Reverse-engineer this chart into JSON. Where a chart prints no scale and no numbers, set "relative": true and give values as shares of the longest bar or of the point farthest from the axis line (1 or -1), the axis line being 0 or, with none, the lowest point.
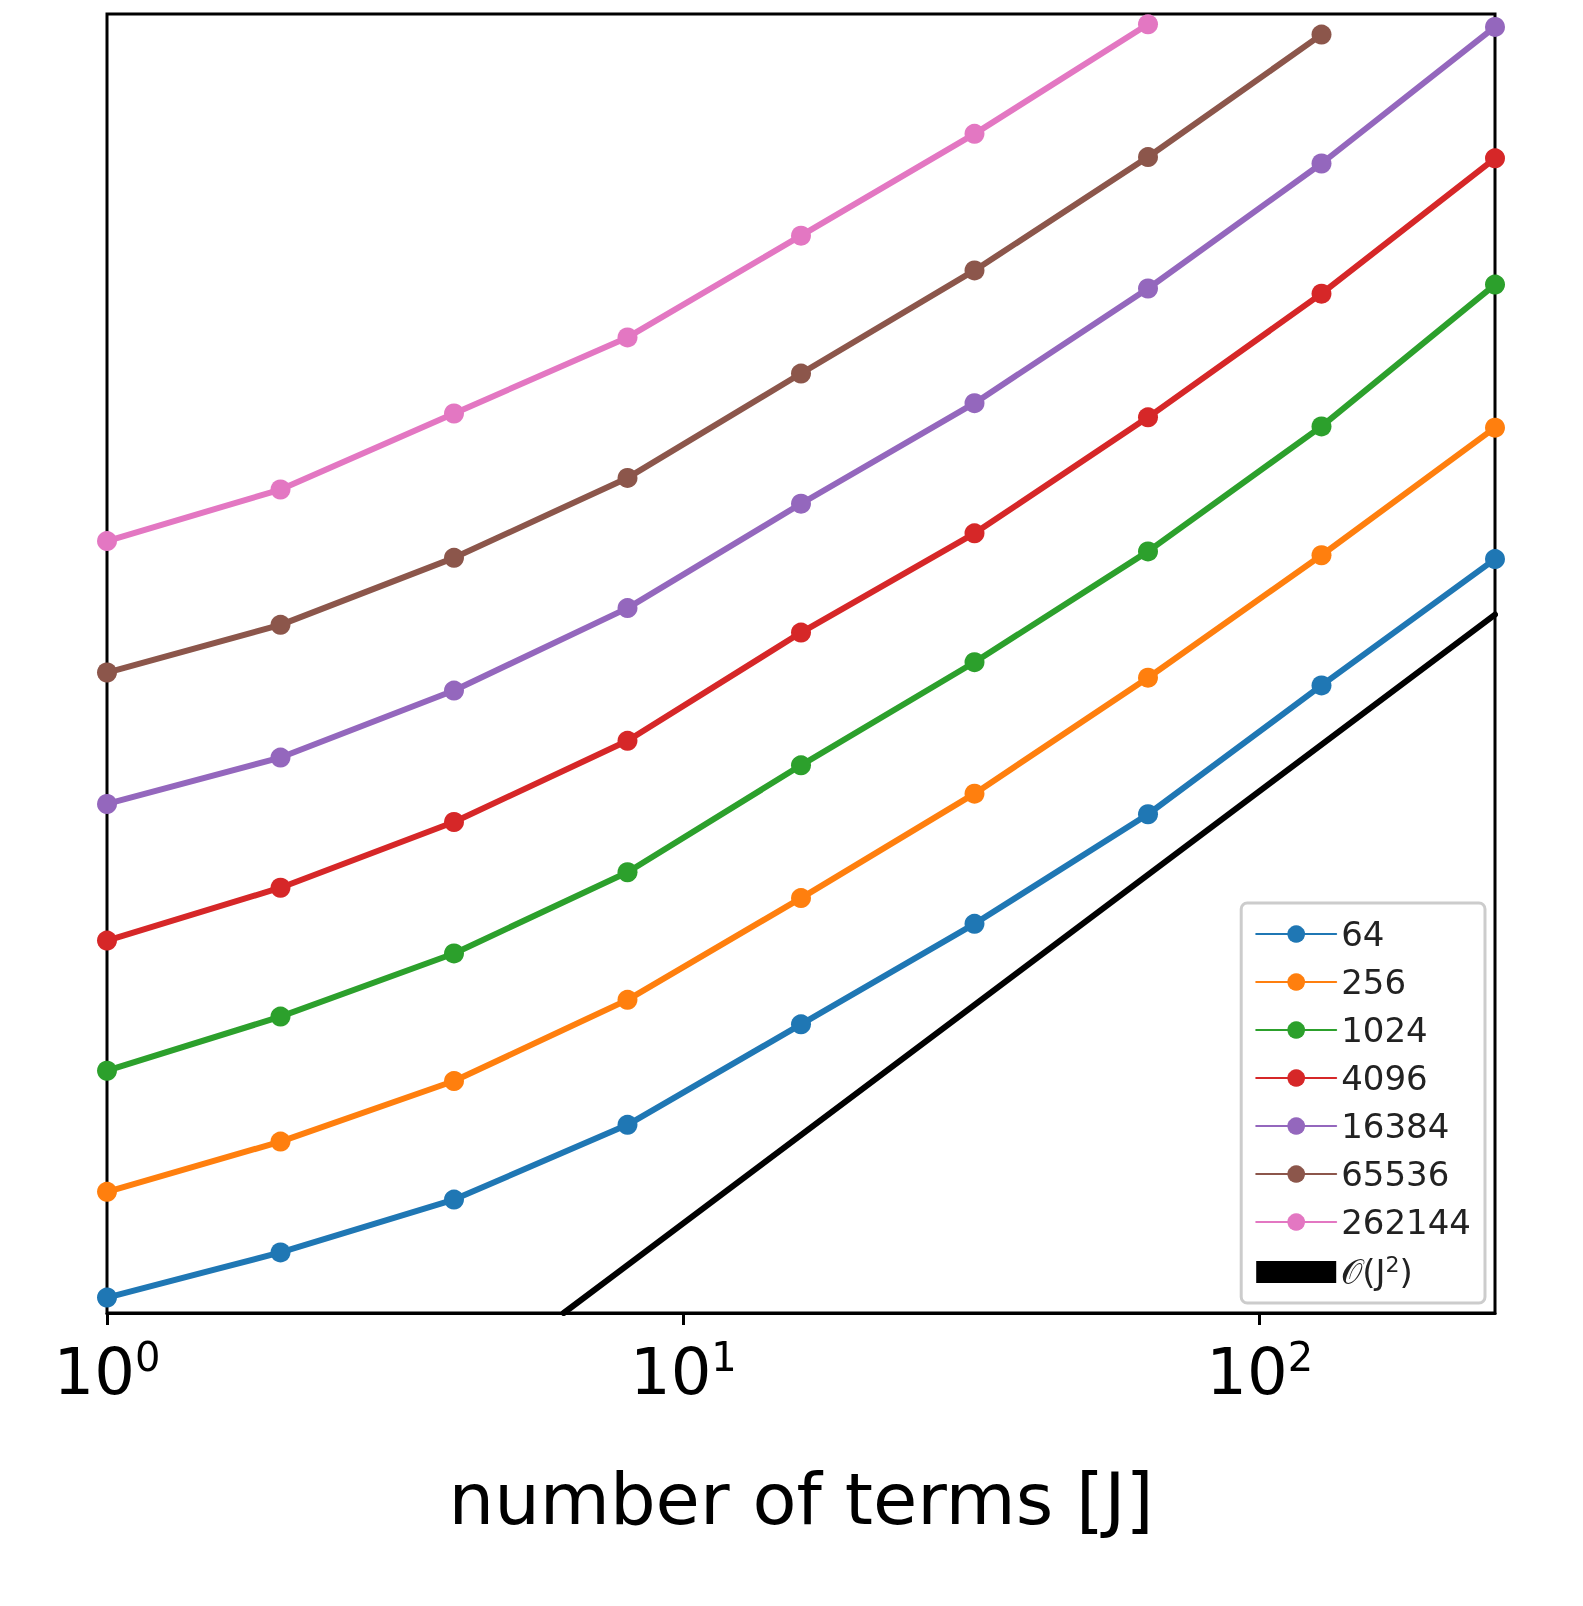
{
  "chart_data": {
    "type": "line",
    "xlabel": "number of terms [J]",
    "log": "x",
    "relative": true,
    "legend": "bottom right",
    "marker": "circle",
    "line_style": "solid",
    "grid": false,
    "xlim": [
      1,
      256
    ],
    "xticks": [
      {
        "value": 1,
        "label": "10$^{0}$"
      },
      {
        "value": 10,
        "label": "10$^{1}$"
      },
      {
        "value": 100,
        "label": "10$^{2}$"
      }
    ],
    "series": [
      {
        "name": "64",
        "color": "#1f77b4",
        "x": [
          1,
          2,
          4,
          8,
          16,
          32,
          64,
          128,
          256
        ],
        "values": [
          0.012,
          0.047,
          0.088,
          0.146,
          0.224,
          0.302,
          0.387,
          0.487,
          0.585
        ]
      },
      {
        "name": "256",
        "color": "#ff7f0e",
        "x": [
          1,
          2,
          4,
          8,
          16,
          32,
          64,
          128,
          256
        ],
        "values": [
          0.094,
          0.133,
          0.18,
          0.243,
          0.322,
          0.403,
          0.493,
          0.588,
          0.687
        ]
      },
      {
        "name": "1024",
        "color": "#2ca02c",
        "x": [
          1,
          2,
          4,
          8,
          16,
          32,
          64,
          128,
          256
        ],
        "values": [
          0.188,
          0.23,
          0.279,
          0.342,
          0.425,
          0.505,
          0.591,
          0.688,
          0.798
        ]
      },
      {
        "name": "4096",
        "color": "#d62728",
        "x": [
          1,
          2,
          4,
          8,
          16,
          32,
          64,
          128,
          256
        ],
        "values": [
          0.289,
          0.33,
          0.381,
          0.444,
          0.528,
          0.605,
          0.695,
          0.791,
          0.896
        ]
      },
      {
        "name": "16384",
        "color": "#9467bd",
        "x": [
          1,
          2,
          4,
          8,
          16,
          32,
          64,
          128,
          256
        ],
        "values": [
          0.395,
          0.431,
          0.483,
          0.547,
          0.628,
          0.706,
          0.795,
          0.892,
          0.998
        ]
      },
      {
        "name": "65536",
        "color": "#8c564b",
        "x": [
          1,
          2,
          4,
          8,
          16,
          32,
          64,
          128
        ],
        "values": [
          0.497,
          0.534,
          0.586,
          0.648,
          0.729,
          0.809,
          0.897,
          0.992
        ]
      },
      {
        "name": "262144",
        "color": "#e377c2",
        "x": [
          1,
          2,
          4,
          8,
          16,
          32,
          64
        ],
        "values": [
          0.599,
          0.639,
          0.698,
          0.757,
          0.836,
          0.915,
          1
        ]
      },
      {
        "name": "𝒪(J$^{2}$)",
        "color": "#000000",
        "marker": "none",
        "x": [
          6.2,
          256
        ],
        "values": [
          0,
          0.542
        ]
      }
    ]
  }
}
